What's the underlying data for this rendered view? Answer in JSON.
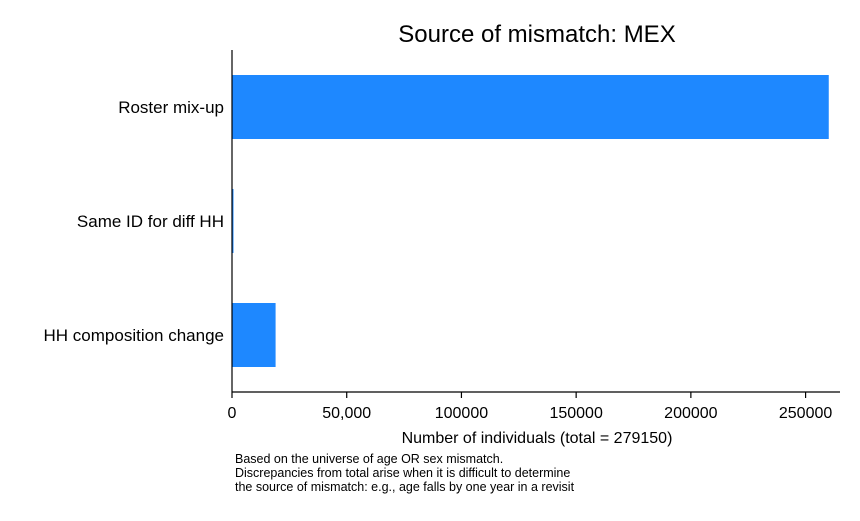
{
  "chart_data": {
    "type": "bar",
    "orientation": "horizontal",
    "title": "Source of mismatch: MEX",
    "xlabel": "Number of individuals (total = 279150)",
    "ylabel": "",
    "categories": [
      "Roster mix-up",
      "Same ID for diff HH",
      "HH composition change"
    ],
    "values": [
      260100,
      500,
      19000
    ],
    "xlim": [
      0,
      265000
    ],
    "xticks": [
      {
        "value": 0,
        "label": "0"
      },
      {
        "value": 50000,
        "label": "50,000"
      },
      {
        "value": 100000,
        "label": "100000"
      },
      {
        "value": 150000,
        "label": "150000"
      },
      {
        "value": 200000,
        "label": "200000"
      },
      {
        "value": 250000,
        "label": "250000"
      }
    ],
    "grid": false,
    "legend": "none",
    "bar_color": "#1e88ff",
    "axis_color": "#000000",
    "note": [
      "Based on the universe of age OR sex mismatch.",
      "Discrepancies from total arise when it is difficult to determine",
      "the source of mismatch: e.g., age falls by one year in a revisit"
    ]
  }
}
